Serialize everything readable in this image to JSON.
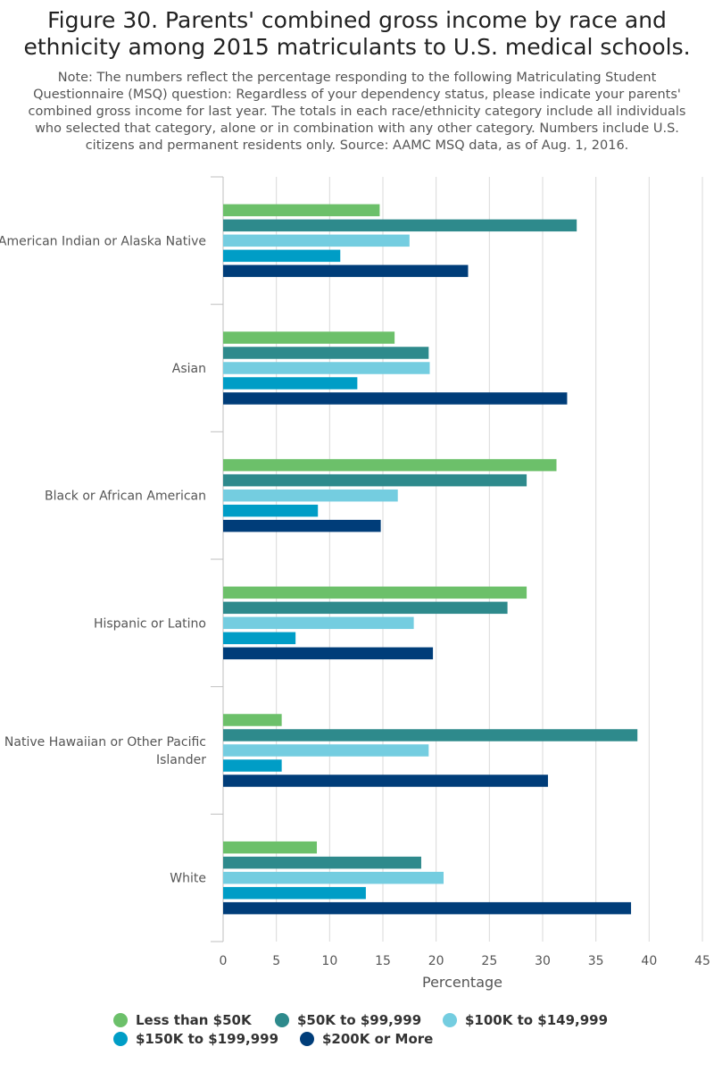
{
  "title": "Figure 30. Parents' combined gross income by race and ethnicity among 2015 matriculants to U.S. medical schools.",
  "note": "Note: The numbers reflect the percentage responding to the following Matriculating Student Questionnaire (MSQ) question: Regardless of your dependency status, please indicate your parents' combined gross income for last year. The totals in each race/ethnicity category include all individuals who selected that category, alone or in combination with any other category. Numbers include U.S. citizens and permanent residents only. Source: AAMC MSQ data, as of Aug. 1, 2016.",
  "chart_data": {
    "type": "bar",
    "orientation": "horizontal",
    "categories": [
      "American Indian or Alaska Native",
      "Asian",
      "Black or African American",
      "Hispanic or Latino",
      "Native Hawaiian or Other Pacific Islander",
      "White"
    ],
    "series": [
      {
        "name": "Less than $50K",
        "color": "#6cc06a",
        "values": [
          14.7,
          16.1,
          31.3,
          28.5,
          5.5,
          8.8
        ]
      },
      {
        "name": "$50K to $99,999",
        "color": "#2e8a8c",
        "values": [
          33.2,
          19.3,
          28.5,
          26.7,
          38.9,
          18.6
        ]
      },
      {
        "name": "$100K to $149,999",
        "color": "#74cde0",
        "values": [
          17.5,
          19.4,
          16.4,
          17.9,
          19.3,
          20.7
        ]
      },
      {
        "name": "$150K to $199,999",
        "color": "#009dc6",
        "values": [
          11.0,
          12.6,
          8.9,
          6.8,
          5.5,
          13.4
        ]
      },
      {
        "name": "$200K or More",
        "color": "#003d79",
        "values": [
          23.0,
          32.3,
          14.8,
          19.7,
          30.5,
          38.3
        ]
      }
    ],
    "xlabel": "Percentage",
    "ylabel": "",
    "xlim": [
      0,
      45
    ],
    "xticks": [
      "0",
      "5",
      "10",
      "15",
      "20",
      "25",
      "30",
      "35",
      "40",
      "45"
    ],
    "grid": true,
    "legend_position": "bottom"
  }
}
